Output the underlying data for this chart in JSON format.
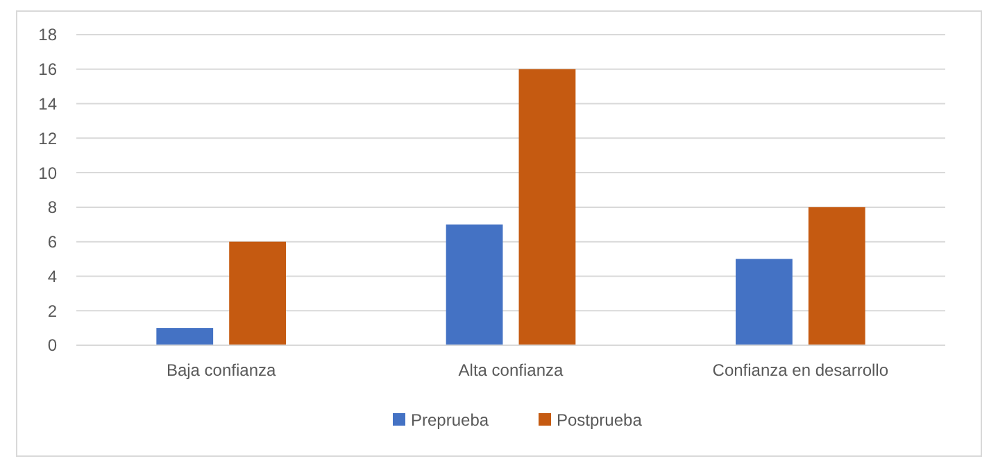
{
  "chart_data": {
    "type": "bar",
    "categories": [
      "Baja confianza",
      "Alta confianza",
      "Confianza en desarrollo"
    ],
    "series": [
      {
        "name": "Preprueba",
        "color": "#4472c4",
        "values": [
          1,
          7,
          5
        ]
      },
      {
        "name": "Postprueba",
        "color": "#c55a11",
        "values": [
          6,
          16,
          8
        ]
      }
    ],
    "ylim": [
      0,
      18
    ],
    "yticks": [
      0,
      2,
      4,
      6,
      8,
      10,
      12,
      14,
      16,
      18
    ],
    "grid": "y",
    "legend": "bottom"
  }
}
